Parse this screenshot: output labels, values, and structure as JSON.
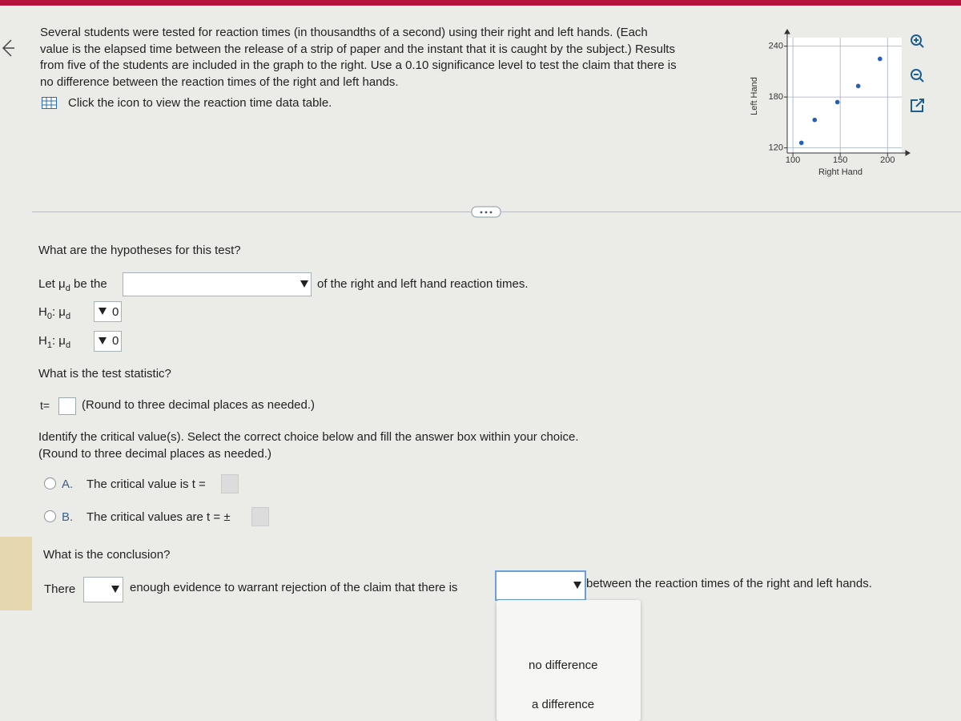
{
  "header": {
    "problem_lines": [
      "Several students were tested for reaction times (in thousandths of a second) using their right and left hands. (Each",
      "value is the elapsed time between the release of a strip of paper and the instant that it is caught by the subject.) Results",
      "from five of the students are included in the graph to the right. Use a 0.10 significance level to test the claim that there is",
      "no difference between the reaction times of the right and left hands."
    ],
    "data_table_link": "Click the icon to view the reaction time data table."
  },
  "chart_data": {
    "type": "scatter",
    "x_label": "Right Hand",
    "y_label": "Left Hand",
    "x": [
      109,
      123,
      147,
      169,
      192
    ],
    "series": [
      {
        "color": "#1f5fbf",
        "values": [
          126,
          153,
          174,
          193,
          225
        ]
      }
    ],
    "xlim": [
      94,
      215
    ],
    "ylim": [
      114,
      250
    ],
    "xticks": [
      100,
      150,
      200
    ],
    "yticks": [
      120,
      180,
      240
    ],
    "grid": true
  },
  "hypotheses": {
    "question": "What are the hypotheses for this test?",
    "let": "Let",
    "mu": "μ",
    "mu_sub": "d",
    "be_the": "be the",
    "suffix": "of the right and left hand reaction times.",
    "h0": {
      "label": "H",
      "index": "0",
      "param": ": μ",
      "param_sub": "d",
      "rhs": "0"
    },
    "h1": {
      "label": "H",
      "index": "1",
      "param": ": μ",
      "param_sub": "d",
      "rhs": "0"
    }
  },
  "test_statistic": {
    "question": "What is the test statistic?",
    "prefix": "t=",
    "hint": "(Round to three decimal places as needed.)"
  },
  "critical": {
    "question": "Identify the critical value(s). Select the correct choice below and fill the answer box within your choice.",
    "hint": "(Round to three decimal places as needed.)",
    "choices": [
      {
        "letter": "A.",
        "text": "The critical value is t ="
      },
      {
        "letter": "B.",
        "text": "The critical values are t = ±"
      }
    ]
  },
  "conclusion": {
    "question": "What is the conclusion?",
    "prefix": "There",
    "middle": "enough evidence to warrant rejection of the claim that there is",
    "suffix": "between the reaction times of the right and left hands.",
    "options": [
      "no difference",
      "a difference"
    ]
  }
}
